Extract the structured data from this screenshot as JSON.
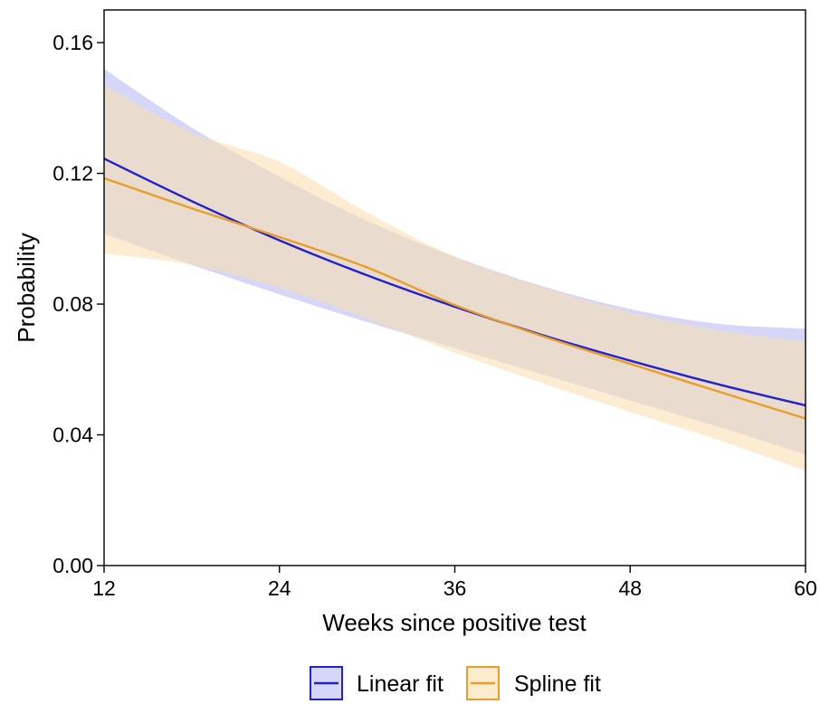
{
  "chart_data": {
    "type": "line",
    "title": "",
    "xlabel": "Weeks since positive test",
    "ylabel": "Probability",
    "xlim": [
      12,
      60
    ],
    "ylim": [
      0,
      0.17
    ],
    "x_ticks": [
      12,
      24,
      36,
      48,
      60
    ],
    "x_tick_labels": [
      "12",
      "24",
      "36",
      "48",
      "60"
    ],
    "y_ticks": [
      0,
      0.04,
      0.08,
      0.12,
      0.16
    ],
    "y_tick_labels": [
      "0.00",
      "0.04",
      "0.08",
      "0.12",
      "0.16"
    ],
    "grid": false,
    "legend_position": "bottom",
    "x": [
      12,
      18,
      24,
      30,
      36,
      42,
      48,
      54,
      60
    ],
    "series": [
      {
        "name": "Linear fit",
        "color": "#2222cc",
        "band_color": "#c6c6f5",
        "values": [
          0.1245,
          0.1115,
          0.0995,
          0.0888,
          0.0792,
          0.0705,
          0.0627,
          0.0555,
          0.049
        ],
        "lower": [
          0.1015,
          0.092,
          0.083,
          0.0745,
          0.0665,
          0.0585,
          0.0505,
          0.0425,
          0.034
        ],
        "upper": [
          0.152,
          0.134,
          0.119,
          0.1055,
          0.0945,
          0.0855,
          0.0785,
          0.074,
          0.0725
        ]
      },
      {
        "name": "Spline fit",
        "color": "#e89f2a",
        "band_color": "#f8dfb1",
        "values": [
          0.1185,
          0.1093,
          0.1005,
          0.0912,
          0.0797,
          0.0702,
          0.0617,
          0.0533,
          0.045
        ],
        "lower": [
          0.0955,
          0.092,
          0.085,
          0.0755,
          0.0652,
          0.0558,
          0.047,
          0.0385,
          0.029
        ],
        "upper": [
          0.147,
          0.1325,
          0.1235,
          0.108,
          0.0945,
          0.0852,
          0.0775,
          0.072,
          0.0685
        ]
      }
    ]
  }
}
